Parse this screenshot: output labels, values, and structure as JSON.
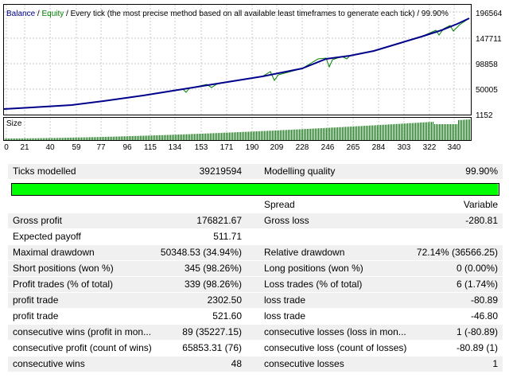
{
  "chart": {
    "legend": {
      "balance": "Balance",
      "separator": " / ",
      "equity": "Equity",
      "description": " / Every tick (the most precise method based on all available least timeframes to generate each tick)  / 99.90%"
    },
    "y_labels": [
      "196564",
      "147711",
      "98858",
      "50005",
      "1152"
    ],
    "size_label": "Size",
    "x_labels": [
      "0",
      "21",
      "40",
      "59",
      "77",
      "96",
      "115",
      "134",
      "153",
      "171",
      "190",
      "209",
      "228",
      "246",
      "265",
      "284",
      "303",
      "322",
      "340"
    ],
    "colors": {
      "balance": "#00008b",
      "equity": "#008000",
      "size_bars": "#008000",
      "grid": "#c8c8c8"
    }
  },
  "report": {
    "ticks_modelled": {
      "label": "Ticks modelled",
      "value": "39219594"
    },
    "modelling_quality": {
      "label": "Modelling quality",
      "value": "99.90%",
      "fraction": 0.999
    },
    "spread": {
      "label": "Spread",
      "value": "Variable"
    },
    "rows": [
      {
        "l1": "Gross profit",
        "v1": "176821.67",
        "l2": "Gross loss",
        "v2": "-280.81"
      },
      {
        "l1": "Expected payoff",
        "v1": "511.71",
        "l2": "",
        "v2": ""
      },
      {
        "l1": "Maximal drawdown",
        "v1": "50348.53 (34.94%)",
        "l2": "Relative drawdown",
        "v2": "72.14% (36566.25)"
      },
      {
        "l1": "Short positions (won %)",
        "v1": "345 (98.26%)",
        "l2": "Long positions (won %)",
        "v2": "0 (0.00%)"
      },
      {
        "l1": "Profit trades (% of total)",
        "v1": "339 (98.26%)",
        "l2": "Loss trades (% of total)",
        "v2": "6 (1.74%)"
      },
      {
        "l1": "profit trade",
        "v1": "2302.50",
        "l2": "loss trade",
        "v2": "-80.89"
      },
      {
        "l1": "profit trade",
        "v1": "521.60",
        "l2": "loss trade",
        "v2": "-46.80"
      },
      {
        "l1": "consecutive wins (profit in mon...",
        "v1": "89 (35227.15)",
        "l2": "consecutive losses (loss in mon...",
        "v2": "1 (-80.89)"
      },
      {
        "l1": "consecutive profit (count of wins)",
        "v1": "65853.31 (76)",
        "l2": "consecutive loss (count of losses)",
        "v2": "-80.89 (1)"
      },
      {
        "l1": "consecutive wins",
        "v1": "48",
        "l2": "consecutive losses",
        "v2": "1"
      }
    ]
  }
}
